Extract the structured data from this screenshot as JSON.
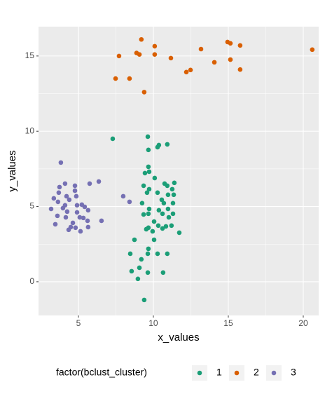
{
  "chart_data": {
    "type": "scatter",
    "x_label": "x_values",
    "y_label": "y_values",
    "legend_title": "factor(bclust_cluster)",
    "legend_position": "bottom",
    "xlim": [
      2.34,
      21.03
    ],
    "ylim": [
      -2.24,
      16.95
    ],
    "xticks": [
      5,
      10,
      15,
      20
    ],
    "yticks": [
      0,
      5,
      10,
      15
    ],
    "grid": true,
    "series": [
      {
        "name": "1",
        "color": "#1b9e77",
        "x": [
          7.29,
          9.63,
          10.37,
          10.28,
          10.93,
          9.67,
          9.67,
          9.44,
          9.72,
          10.09,
          10.75,
          10.93,
          11.4,
          11.26,
          9.35,
          9.72,
          9.58,
          10.28,
          10.98,
          11.36,
          9.25,
          10.56,
          10.7,
          11.31,
          9.72,
          10.98,
          10.37,
          9.35,
          9.67,
          10.61,
          11.31,
          10.05,
          11.03,
          9.67,
          10.33,
          10.61,
          11.21,
          11.73,
          10.84,
          9.95,
          9.53,
          8.74,
          10.05,
          9.67,
          9.63,
          8.46,
          10.28,
          10.93,
          9.2,
          9.07,
          8.55,
          9.63,
          10.65,
          8.97,
          9.39
        ],
        "values": [
          9.5,
          9.64,
          9.08,
          8.94,
          9.13,
          8.76,
          7.64,
          7.22,
          7.31,
          6.89,
          6.52,
          6.38,
          6.57,
          6.15,
          6.38,
          6.15,
          5.92,
          5.92,
          5.78,
          5.78,
          5.22,
          5.45,
          5.22,
          5.22,
          4.84,
          4.84,
          4.75,
          4.47,
          4.52,
          4.52,
          4.52,
          4.0,
          4.28,
          3.59,
          3.73,
          3.54,
          3.73,
          3.26,
          3.68,
          3.35,
          3.49,
          2.79,
          2.79,
          2.19,
          1.86,
          1.86,
          1.86,
          1.86,
          1.49,
          0.93,
          0.7,
          0.61,
          0.61,
          0.19,
          -1.21
        ]
      },
      {
        "name": "2",
        "color": "#d95f02",
        "x": [
          7.48,
          7.71,
          8.41,
          8.88,
          9.07,
          9.2,
          9.39,
          10.09,
          10.09,
          11.17,
          12.2,
          12.48,
          13.18,
          14.07,
          14.95,
          15.14,
          15.14,
          15.79,
          15.79,
          20.6
        ],
        "values": [
          13.5,
          15.0,
          13.5,
          15.2,
          15.1,
          16.1,
          12.6,
          15.65,
          15.1,
          14.86,
          13.93,
          14.07,
          15.46,
          14.58,
          15.93,
          15.84,
          14.76,
          15.7,
          14.1,
          15.42
        ]
      },
      {
        "name": "3",
        "color": "#7570b3",
        "x": [
          3.83,
          3.74,
          3.69,
          4.11,
          4.77,
          4.77,
          5.75,
          6.36,
          3.36,
          4.21,
          4.86,
          3.64,
          4.39,
          4.11,
          4.91,
          5.23,
          3.18,
          3.97,
          5.42,
          5.65,
          4.25,
          4.91,
          5.09,
          5.33,
          5.61,
          3.6,
          3.46,
          4.16,
          4.63,
          4.49,
          4.81,
          4.35,
          5.14,
          5.65,
          6.54,
          7.99,
          8.41
        ],
        "values": [
          7.92,
          6.29,
          5.92,
          6.52,
          6.38,
          6.05,
          6.52,
          6.66,
          5.54,
          5.68,
          5.68,
          5.31,
          5.45,
          5.08,
          5.08,
          5.12,
          4.84,
          4.89,
          4.98,
          4.75,
          4.66,
          4.61,
          4.28,
          4.24,
          4.05,
          4.38,
          3.82,
          4.28,
          3.91,
          3.63,
          3.59,
          3.45,
          3.35,
          3.63,
          4.05,
          5.68,
          5.31
        ]
      }
    ]
  }
}
